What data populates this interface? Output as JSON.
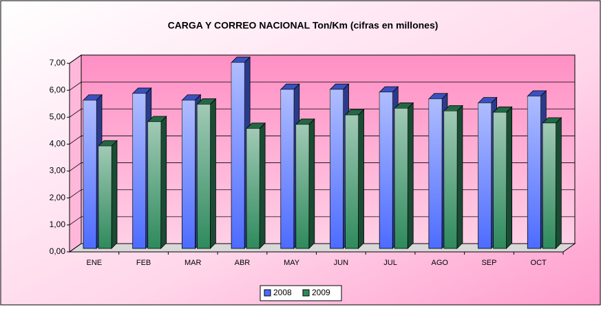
{
  "chart_data": {
    "type": "bar3d",
    "title": "CARGA Y CORREO NACIONAL Ton/Km (cifras en millones)",
    "categories": [
      "ENE",
      "FEB",
      "MAR",
      "ABR",
      "MAY",
      "JUN",
      "JUL",
      "AGO",
      "SEP",
      "OCT"
    ],
    "series": [
      {
        "name": "2008",
        "color": "#4d6cff",
        "values": [
          5.5,
          5.75,
          5.5,
          6.9,
          5.9,
          5.9,
          5.8,
          5.55,
          5.4,
          5.65
        ]
      },
      {
        "name": "2009",
        "color": "#2e8a5c",
        "values": [
          3.8,
          4.7,
          5.35,
          4.45,
          4.6,
          4.95,
          5.2,
          5.1,
          5.05,
          4.65
        ]
      }
    ],
    "ylim": [
      0,
      7
    ],
    "yticks": [
      {
        "value": 0,
        "label": "0,00"
      },
      {
        "value": 1,
        "label": "1,00"
      },
      {
        "value": 2,
        "label": "2,00"
      },
      {
        "value": 3,
        "label": "3,00"
      },
      {
        "value": 4,
        "label": "4,00"
      },
      {
        "value": 5,
        "label": "5,00"
      },
      {
        "value": 6,
        "label": "6,00"
      },
      {
        "value": 7,
        "label": "7,00"
      }
    ],
    "grid": true,
    "legend": "bottom"
  }
}
